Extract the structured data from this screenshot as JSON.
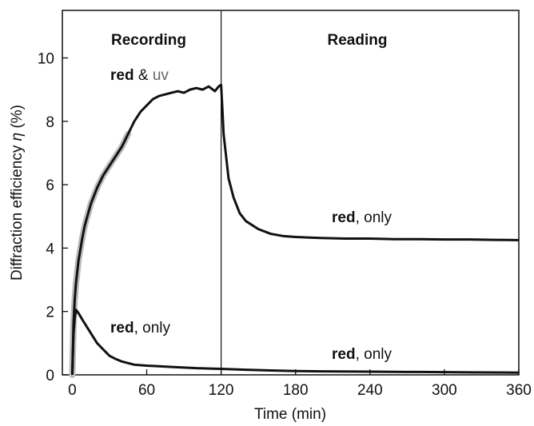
{
  "chart_data": {
    "type": "line",
    "title": "",
    "xlabel": "Time (min)",
    "ylabel_main": "Diffraction efficiency ",
    "ylabel_symbol": "η",
    "ylabel_unit": " (%)",
    "xlim": [
      -8,
      360
    ],
    "ylim": [
      0,
      11.5
    ],
    "xticks": [
      0,
      60,
      120,
      180,
      240,
      300,
      360
    ],
    "yticks": [
      0,
      2,
      4,
      6,
      8,
      10
    ],
    "grid": false,
    "divider_x": 120,
    "regions": [
      {
        "label": "Recording"
      },
      {
        "label": "Reading"
      }
    ],
    "annotations": [
      {
        "bold": "red",
        "rest": " & ",
        "extra": "uv"
      },
      {
        "bold": "red",
        "rest": ", only"
      },
      {
        "bold": "red",
        "rest": ", only"
      },
      {
        "bold": "red",
        "rest": ", only"
      }
    ],
    "series": [
      {
        "color": "#111111",
        "highlight": "#bdbdbd",
        "x": [
          0,
          1,
          2,
          3,
          5,
          8,
          10,
          15,
          20,
          25,
          30,
          35,
          40,
          45,
          50,
          55,
          60,
          65,
          70,
          75,
          80,
          85,
          90,
          95,
          100,
          105,
          110,
          115,
          118,
          120,
          121,
          122,
          124,
          126,
          130,
          135,
          140,
          150,
          160,
          170,
          180,
          200,
          220,
          240,
          260,
          280,
          300,
          320,
          340,
          360
        ],
        "values": [
          0.0,
          1.6,
          2.4,
          2.9,
          3.6,
          4.3,
          4.7,
          5.4,
          5.9,
          6.3,
          6.6,
          6.9,
          7.2,
          7.6,
          8.0,
          8.3,
          8.5,
          8.7,
          8.8,
          8.85,
          8.9,
          8.95,
          8.9,
          9.0,
          9.05,
          9.0,
          9.1,
          8.95,
          9.1,
          9.15,
          8.4,
          7.6,
          6.9,
          6.2,
          5.6,
          5.1,
          4.85,
          4.6,
          4.45,
          4.38,
          4.35,
          4.32,
          4.3,
          4.3,
          4.28,
          4.28,
          4.27,
          4.27,
          4.26,
          4.25
        ],
        "highlight_range": [
          0,
          45
        ]
      },
      {
        "color": "#111111",
        "x": [
          0,
          1,
          2,
          3,
          5,
          8,
          12,
          16,
          20,
          25,
          30,
          35,
          40,
          45,
          50,
          60,
          70,
          80,
          90,
          100,
          110,
          120,
          140,
          160,
          180,
          200,
          240,
          280,
          320,
          360
        ],
        "values": [
          0.0,
          1.3,
          1.8,
          2.05,
          1.95,
          1.75,
          1.5,
          1.25,
          1.0,
          0.8,
          0.6,
          0.5,
          0.42,
          0.37,
          0.32,
          0.29,
          0.27,
          0.25,
          0.23,
          0.21,
          0.2,
          0.19,
          0.16,
          0.14,
          0.12,
          0.11,
          0.1,
          0.09,
          0.08,
          0.07
        ]
      }
    ]
  }
}
